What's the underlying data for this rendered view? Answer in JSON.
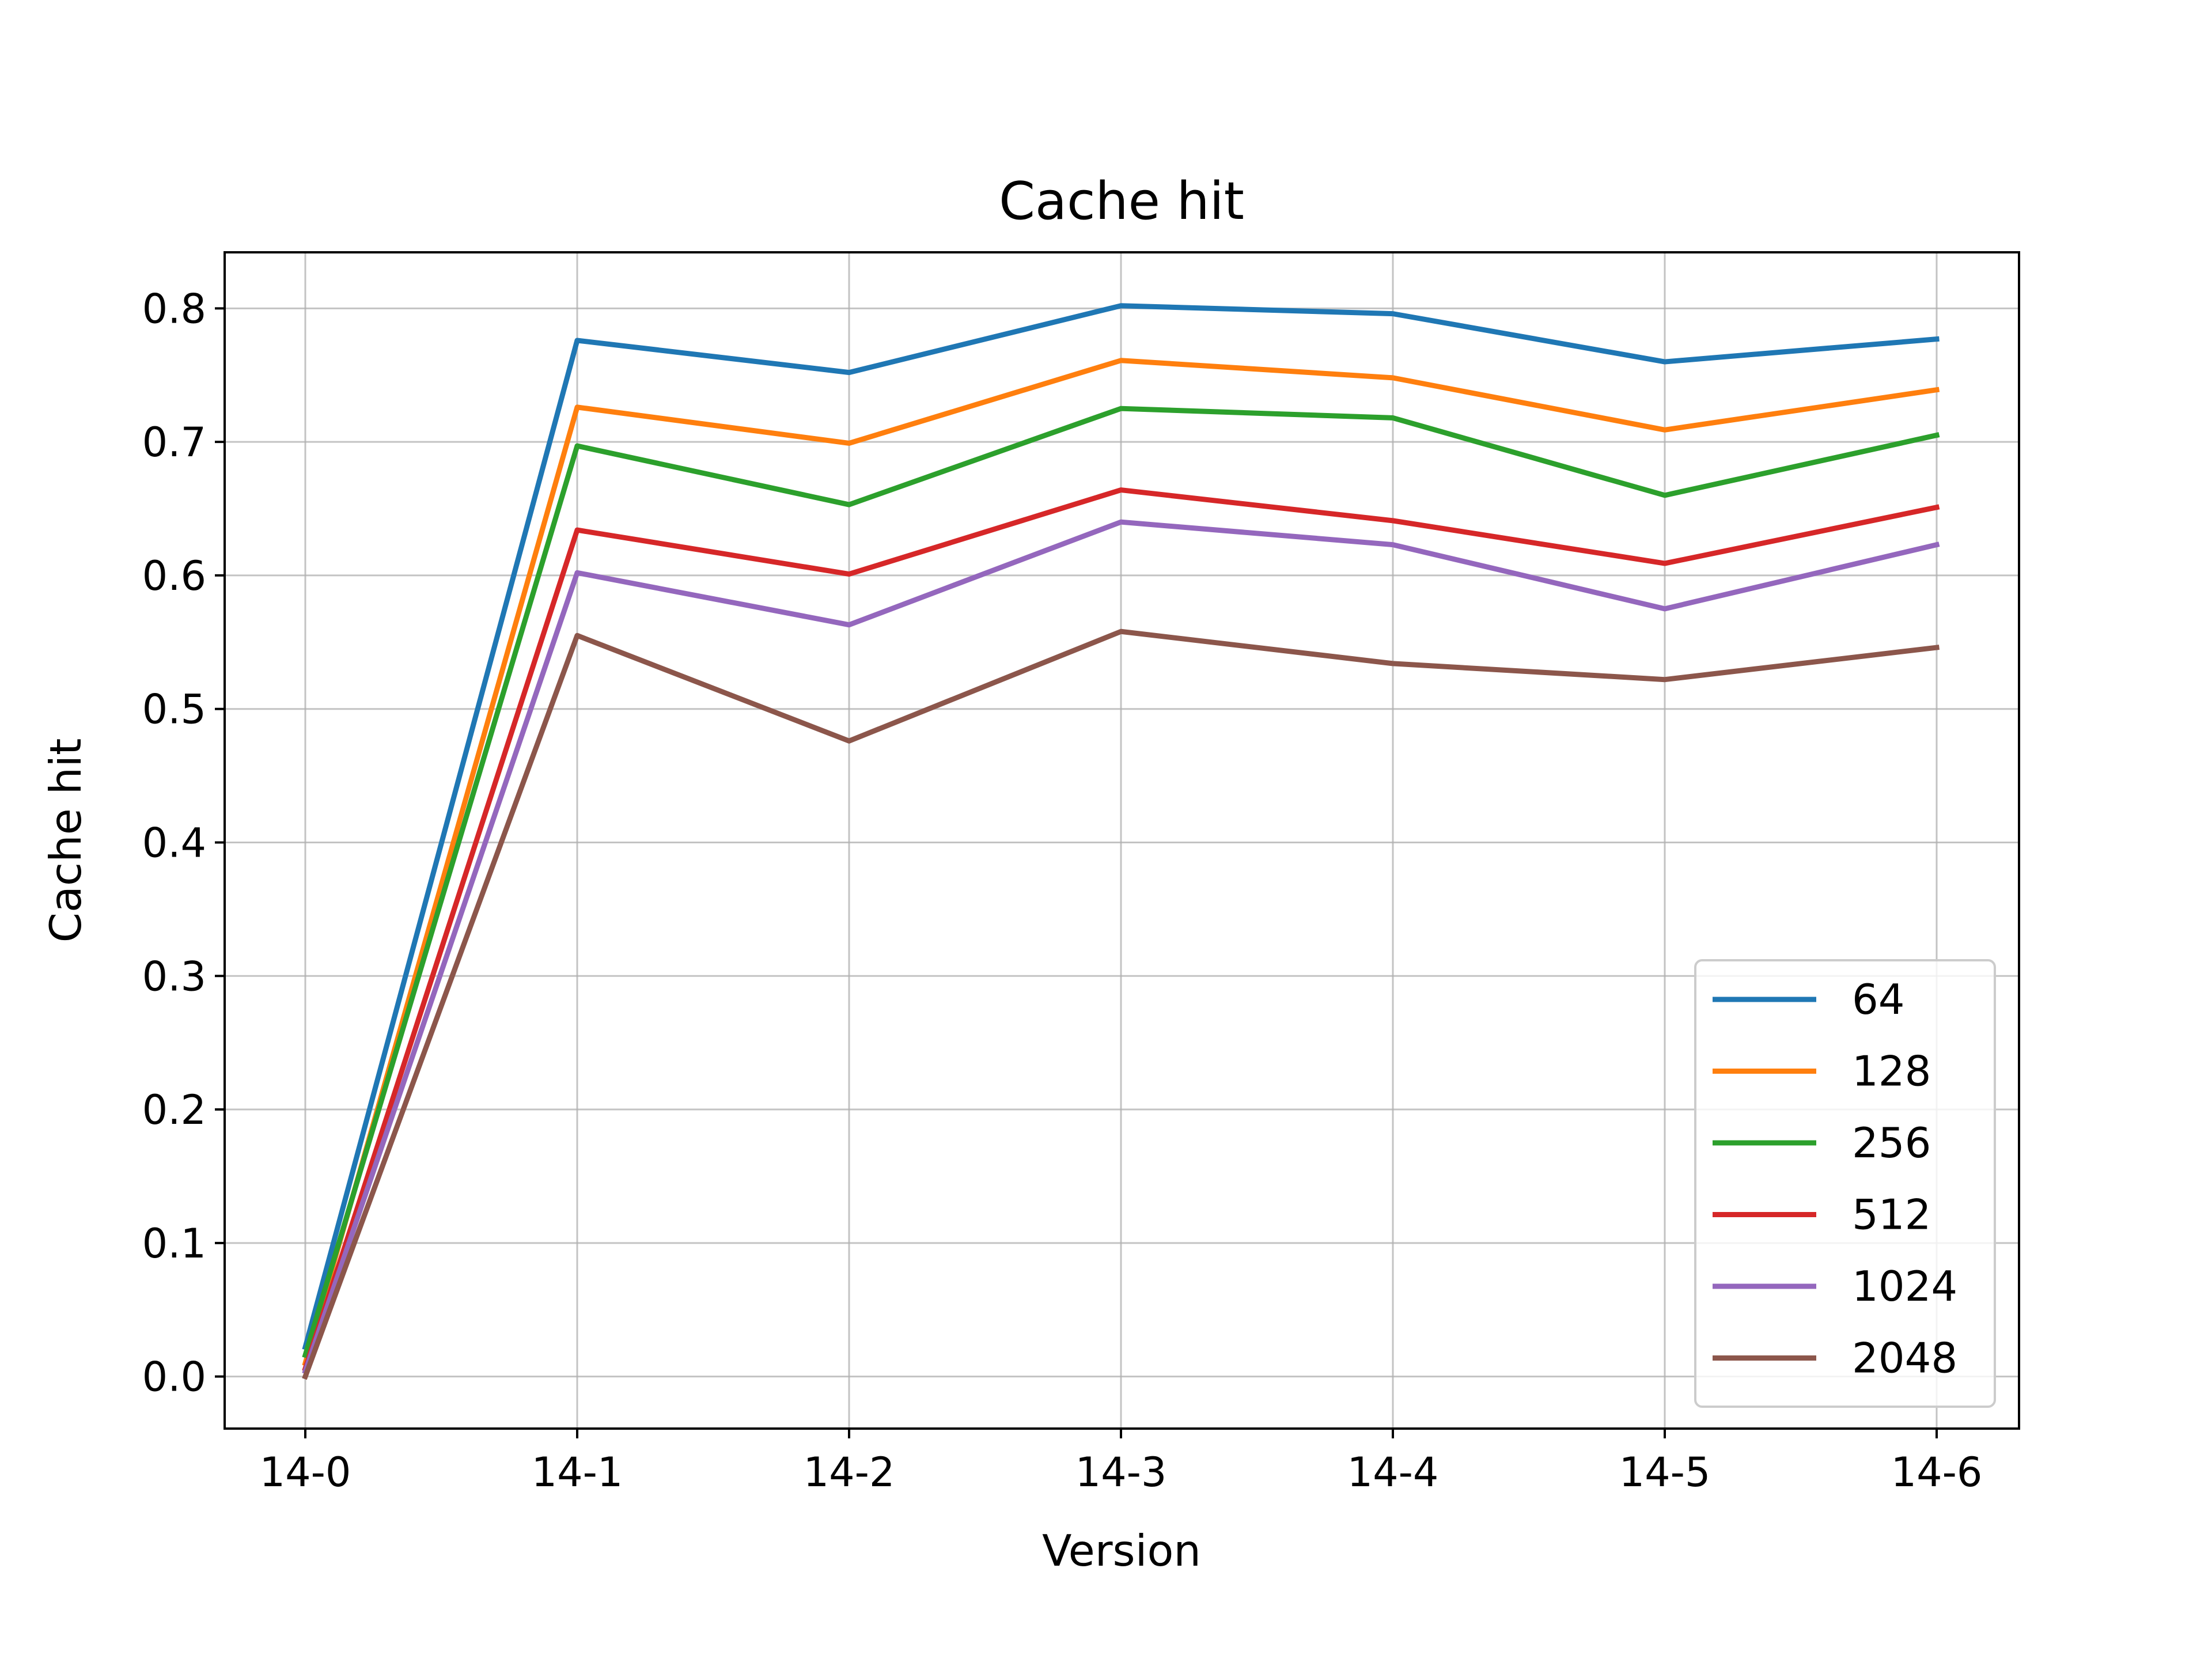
{
  "chart_data": {
    "type": "line",
    "title": "Cache hit",
    "xlabel": "Version",
    "ylabel": "Cache hit",
    "categories": [
      "14-0",
      "14-1",
      "14-2",
      "14-3",
      "14-4",
      "14-5",
      "14-6"
    ],
    "ylim": [
      -0.039,
      0.842
    ],
    "yticks": [
      0.0,
      0.1,
      0.2,
      0.3,
      0.4,
      0.5,
      0.6,
      0.7,
      0.8
    ],
    "ytick_labels": [
      "0.0",
      "0.1",
      "0.2",
      "0.3",
      "0.4",
      "0.5",
      "0.6",
      "0.7",
      "0.8"
    ],
    "grid": true,
    "legend_position": "lower right",
    "series": [
      {
        "name": "64",
        "color": "#1f77b4",
        "values": [
          0.022,
          0.776,
          0.752,
          0.802,
          0.796,
          0.76,
          0.777
        ]
      },
      {
        "name": "128",
        "color": "#ff7f0e",
        "values": [
          0.01,
          0.726,
          0.699,
          0.761,
          0.748,
          0.709,
          0.739
        ]
      },
      {
        "name": "256",
        "color": "#2ca02c",
        "values": [
          0.016,
          0.697,
          0.653,
          0.725,
          0.718,
          0.66,
          0.705
        ]
      },
      {
        "name": "512",
        "color": "#d62728",
        "values": [
          0.006,
          0.634,
          0.601,
          0.664,
          0.641,
          0.609,
          0.651
        ]
      },
      {
        "name": "1024",
        "color": "#9467bd",
        "values": [
          0.004,
          0.602,
          0.563,
          0.64,
          0.623,
          0.575,
          0.623
        ]
      },
      {
        "name": "2048",
        "color": "#8c564b",
        "values": [
          0.0,
          0.555,
          0.476,
          0.558,
          0.534,
          0.522,
          0.546
        ]
      }
    ]
  }
}
